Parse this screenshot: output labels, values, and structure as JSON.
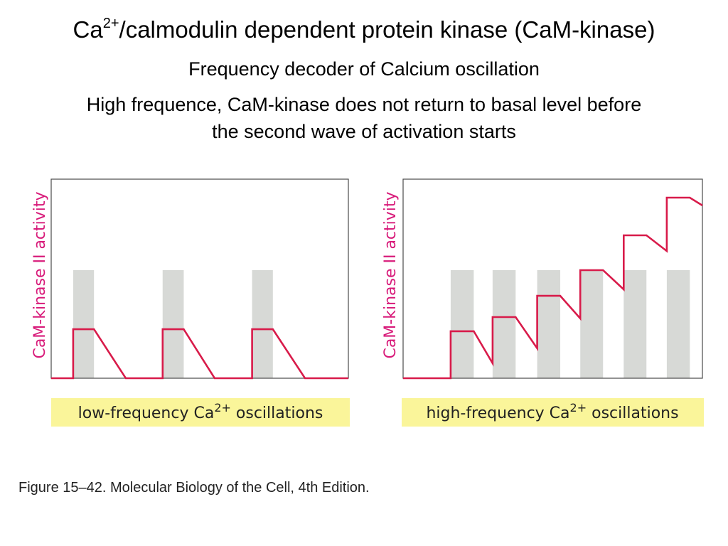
{
  "slide": {
    "title_prefix": "Ca",
    "title_superscript": "2+",
    "title_suffix": "/calmodulin dependent protein kinase (CaM-kinase)",
    "subtitle": "Frequency decoder of Calcium oscillation",
    "description_line1": "High frequence, CaM-kinase does not return to basal level before",
    "description_line2": "the second wave of activation starts",
    "caption": "Figure 15–42. Molecular Biology of the Cell, 4th Edition."
  },
  "colors": {
    "trace": "#d81b4a",
    "ylabel": "#d81b7a",
    "pulse_band": "#d7d9d6",
    "label_band": "#faf59a",
    "frame": "#4a4a4a"
  },
  "chart_data": [
    {
      "type": "line",
      "ylabel": "CaM-kinase II activity",
      "xlabel_prefix": "low-frequency Ca",
      "xlabel_superscript": "2+",
      "xlabel_suffix": " oscillations",
      "xlim": [
        0,
        100
      ],
      "ylim": [
        0,
        100
      ],
      "grid": false,
      "ca_pulses": [
        [
          7.4,
          14.4
        ],
        [
          37.5,
          44.6
        ],
        [
          67.6,
          74.6
        ]
      ],
      "pulse_height": 54.3,
      "series": [
        {
          "name": "",
          "x": [
            0,
            7.4,
            7.4,
            14.4,
            25.1,
            37.5,
            37.5,
            44.6,
            55.0,
            67.6,
            67.6,
            74.6,
            85.4,
            100
          ],
          "y": [
            0,
            0,
            24.6,
            24.6,
            0,
            0,
            24.6,
            24.6,
            0,
            0,
            24.6,
            24.6,
            0,
            0
          ]
        }
      ]
    },
    {
      "type": "line",
      "ylabel": "CaM-kinase II activity",
      "xlabel_prefix": "high-frequency Ca",
      "xlabel_superscript": "2+",
      "xlabel_suffix": " oscillations",
      "xlim": [
        0,
        100
      ],
      "ylim": [
        0,
        100
      ],
      "grid": false,
      "ca_pulses": [
        [
          15.9,
          23.6
        ],
        [
          29.9,
          37.6
        ],
        [
          44.8,
          52.5
        ],
        [
          59.2,
          66.8
        ],
        [
          73.7,
          81.3
        ],
        [
          88.1,
          95.8
        ]
      ],
      "pulse_height": 54.3,
      "series": [
        {
          "name": "",
          "x": [
            0,
            15.9,
            15.9,
            23.6,
            29.9,
            29.9,
            37.6,
            44.8,
            44.8,
            52.5,
            59.2,
            59.2,
            66.8,
            73.7,
            73.7,
            81.3,
            88.1,
            88.1,
            95.8,
            100
          ],
          "y": [
            0,
            0,
            23.6,
            23.6,
            7.5,
            30.7,
            30.7,
            15.0,
            41.4,
            41.4,
            30.0,
            54.3,
            54.3,
            44.6,
            71.8,
            71.8,
            63.9,
            90.7,
            90.7,
            86.8
          ]
        }
      ]
    }
  ]
}
